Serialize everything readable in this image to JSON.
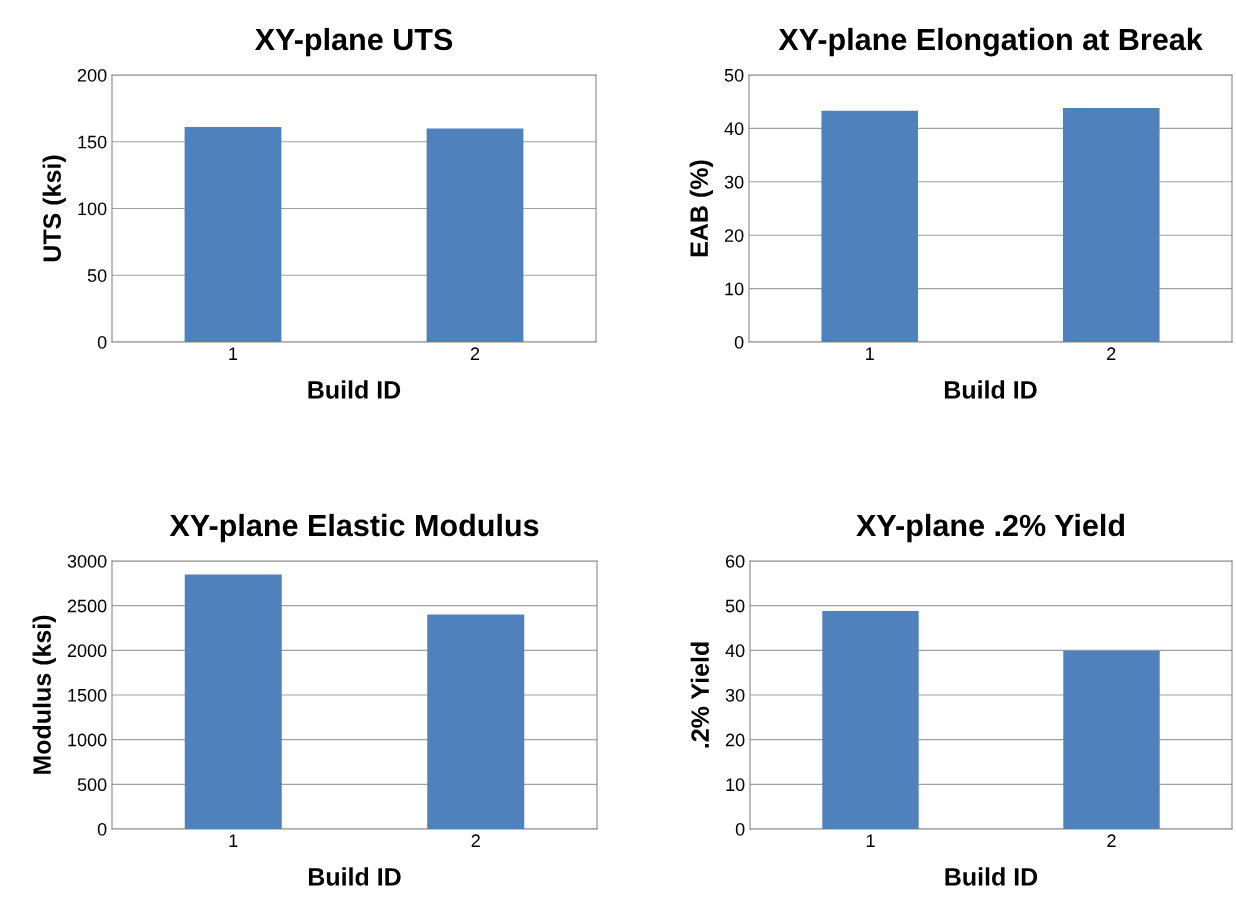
{
  "chart_data": [
    {
      "type": "bar",
      "title": "XY-plane UTS",
      "xlabel": "Build ID",
      "ylabel": "UTS (ksi)",
      "categories": [
        "1",
        "2"
      ],
      "values": [
        161,
        160
      ],
      "color": "#4f81bd",
      "ylim": [
        0,
        200
      ],
      "yticks": [
        0,
        50,
        100,
        150,
        200
      ],
      "grid": "y"
    },
    {
      "type": "bar",
      "title": "XY-plane Elongation at Break",
      "xlabel": "Build ID",
      "ylabel": "EAB (%)",
      "categories": [
        "1",
        "2"
      ],
      "values": [
        43.3,
        43.8
      ],
      "color": "#4f81bd",
      "ylim": [
        0,
        50
      ],
      "yticks": [
        0,
        10,
        20,
        30,
        40,
        50
      ],
      "grid": "y"
    },
    {
      "type": "bar",
      "title": "XY-plane Elastic Modulus",
      "xlabel": "Build ID",
      "ylabel": "Modulus (ksi)",
      "categories": [
        "1",
        "2"
      ],
      "values": [
        2850,
        2400
      ],
      "color": "#4f81bd",
      "ylim": [
        0,
        3000
      ],
      "yticks": [
        0,
        500,
        1000,
        1500,
        2000,
        2500,
        3000
      ],
      "grid": "y"
    },
    {
      "type": "bar",
      "title": "XY-plane .2% Yield",
      "xlabel": "Build ID",
      "ylabel": ".2% Yield",
      "categories": [
        "1",
        "2"
      ],
      "values": [
        48.8,
        39.9
      ],
      "color": "#4f81bd",
      "ylim": [
        0,
        60
      ],
      "yticks": [
        0,
        10,
        20,
        30,
        40,
        50,
        60
      ],
      "grid": "y"
    }
  ]
}
